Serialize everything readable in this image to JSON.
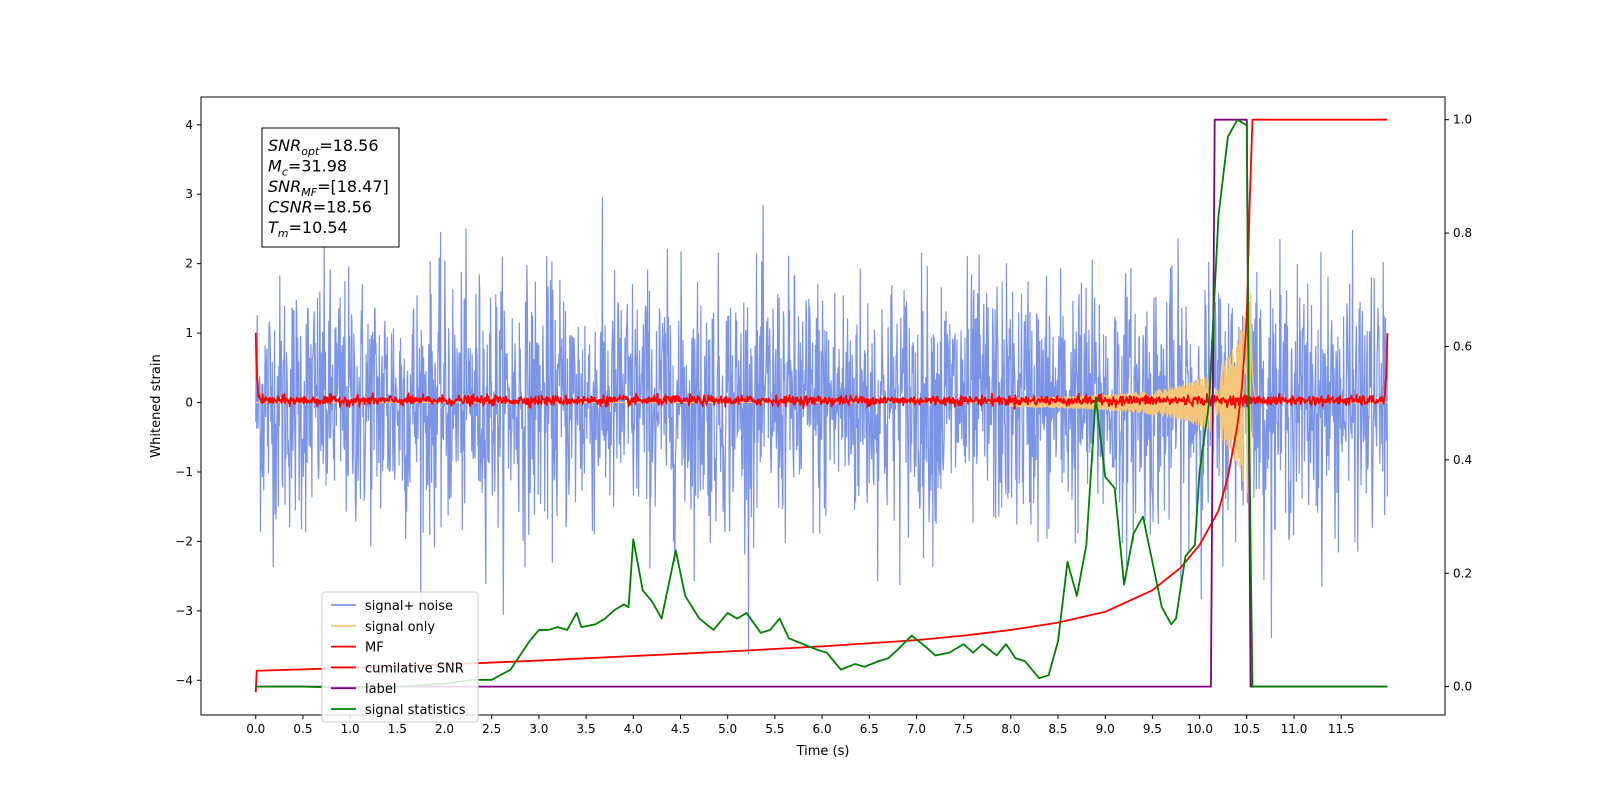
{
  "chart_data": {
    "type": "line",
    "xlabel": "Time (s)",
    "ylabel": "Whitened strain",
    "xlim": [
      -0.58,
      12.6
    ],
    "ylim": [
      -4.5,
      4.4
    ],
    "y2lim": [
      -0.05,
      1.04
    ],
    "x_ticks": [
      0.0,
      0.5,
      1.0,
      1.5,
      2.0,
      2.5,
      3.0,
      3.5,
      4.0,
      4.5,
      5.0,
      5.5,
      6.0,
      6.5,
      7.0,
      7.5,
      8.0,
      8.5,
      9.0,
      9.5,
      10.0,
      10.5,
      11.0,
      11.5
    ],
    "x_tick_labels": [
      "0.0",
      "0.5",
      "1.0",
      "1.5",
      "2.0",
      "2.5",
      "3.0",
      "3.5",
      "4.0",
      "4.5",
      "5.0",
      "5.5",
      "6.0",
      "6.5",
      "7.0",
      "7.5",
      "8.0",
      "8.5",
      "9.0",
      "9.5",
      "10.0",
      "10.5",
      "11.0",
      "11.5"
    ],
    "y_ticks": [
      -4,
      -3,
      -2,
      -1,
      0,
      1,
      2,
      3,
      4
    ],
    "y_tick_labels": [
      "−4",
      "−3",
      "−2",
      "−1",
      "0",
      "1",
      "2",
      "3",
      "4"
    ],
    "y2_ticks": [
      0.0,
      0.2,
      0.4,
      0.6,
      0.8,
      1.0
    ],
    "y2_tick_labels": [
      "0.0",
      "0.2",
      "0.4",
      "0.6",
      "0.8",
      "1.0"
    ],
    "grid": false,
    "legend_position": "bottom-left",
    "info_box": {
      "lines": [
        {
          "name": "SNR",
          "sub": "opt",
          "value": "=18.56"
        },
        {
          "name": "M",
          "sub": "c",
          "value": "=31.98"
        },
        {
          "name": "SNR",
          "sub": "MF",
          "value": "=[18.47]"
        },
        {
          "name": "CSNR",
          "sub": "",
          "value": "=18.56"
        },
        {
          "name": "T",
          "sub": "m",
          "value": "=10.54"
        }
      ]
    },
    "series": [
      {
        "name": "signal+ noise",
        "color": "#7b94e8",
        "axis": "left",
        "kind": "noise",
        "x_range": [
          0.0,
          11.99
        ],
        "amplitude_std": 0.9,
        "range": [
          -4.15,
          3.2
        ]
      },
      {
        "name": "signal only",
        "color": "#f4c67a",
        "axis": "left",
        "kind": "chirp",
        "x_range": [
          0.0,
          11.99
        ],
        "merger_time": 10.54,
        "peak_amplitude": 1.7
      },
      {
        "name": "MF",
        "color": "#ff0000",
        "axis": "left",
        "kind": "matched-filter",
        "x_range": [
          0.0,
          11.99
        ],
        "baseline": 0.03,
        "edge_values": [
          1.0,
          0.95
        ]
      },
      {
        "name": "cumilative SNR",
        "color": "#ff0000",
        "axis": "right",
        "x": [
          0.0,
          0.01,
          1.0,
          2.0,
          3.0,
          4.0,
          5.0,
          6.0,
          7.0,
          7.5,
          8.0,
          8.5,
          9.0,
          9.5,
          9.8,
          10.0,
          10.2,
          10.3,
          10.4,
          10.45,
          10.5,
          10.53,
          10.56,
          10.6,
          11.0,
          11.5,
          11.99
        ],
        "y": [
          -0.01,
          0.028,
          0.033,
          0.039,
          0.046,
          0.054,
          0.062,
          0.071,
          0.082,
          0.09,
          0.1,
          0.113,
          0.132,
          0.17,
          0.21,
          0.25,
          0.31,
          0.37,
          0.46,
          0.53,
          0.65,
          0.85,
          1.0,
          1.0,
          1.0,
          1.0,
          1.0
        ]
      },
      {
        "name": "label",
        "color": "#800080",
        "axis": "right",
        "x": [
          0.0,
          10.12,
          10.16,
          10.5,
          10.54,
          11.99
        ],
        "y": [
          0.0,
          0.0,
          1.0,
          1.0,
          0.0,
          0.0
        ]
      },
      {
        "name": "signal statistics",
        "color": "#008000",
        "axis": "right",
        "x": [
          0.0,
          0.5,
          1.0,
          1.5,
          2.0,
          2.3,
          2.5,
          2.7,
          2.9,
          3.0,
          3.1,
          3.2,
          3.3,
          3.4,
          3.45,
          3.6,
          3.7,
          3.8,
          3.9,
          3.95,
          4.0,
          4.1,
          4.2,
          4.3,
          4.45,
          4.55,
          4.7,
          4.85,
          5.0,
          5.1,
          5.2,
          5.35,
          5.45,
          5.55,
          5.65,
          5.8,
          5.95,
          6.05,
          6.2,
          6.35,
          6.45,
          6.6,
          6.7,
          6.8,
          6.95,
          7.1,
          7.2,
          7.35,
          7.5,
          7.6,
          7.7,
          7.85,
          7.95,
          8.05,
          8.15,
          8.3,
          8.4,
          8.5,
          8.6,
          8.7,
          8.8,
          8.9,
          9.0,
          9.1,
          9.2,
          9.3,
          9.4,
          9.5,
          9.6,
          9.7,
          9.75,
          9.85,
          9.95,
          10.0,
          10.1,
          10.2,
          10.3,
          10.4,
          10.5,
          10.52,
          10.56,
          10.6,
          11.0,
          11.5,
          11.99
        ],
        "y": [
          0.0,
          0.0,
          -0.002,
          0.0,
          0.005,
          0.012,
          0.012,
          0.03,
          0.08,
          0.1,
          0.1,
          0.105,
          0.1,
          0.13,
          0.105,
          0.11,
          0.12,
          0.135,
          0.145,
          0.14,
          0.26,
          0.17,
          0.15,
          0.12,
          0.24,
          0.16,
          0.12,
          0.1,
          0.13,
          0.12,
          0.13,
          0.095,
          0.1,
          0.12,
          0.085,
          0.075,
          0.065,
          0.06,
          0.03,
          0.04,
          0.035,
          0.045,
          0.05,
          0.065,
          0.09,
          0.07,
          0.055,
          0.06,
          0.075,
          0.06,
          0.075,
          0.055,
          0.075,
          0.05,
          0.045,
          0.015,
          0.02,
          0.08,
          0.22,
          0.16,
          0.25,
          0.51,
          0.37,
          0.35,
          0.18,
          0.27,
          0.3,
          0.22,
          0.14,
          0.11,
          0.12,
          0.23,
          0.25,
          0.38,
          0.5,
          0.83,
          0.97,
          1.0,
          0.99,
          0.5,
          0.0,
          0.0,
          0.0,
          0.0,
          0.0
        ]
      }
    ]
  }
}
